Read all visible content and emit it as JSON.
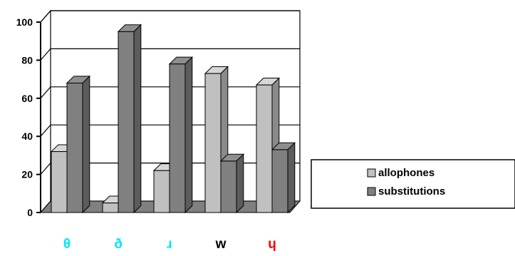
{
  "chart_data": {
    "type": "bar",
    "title": "",
    "xlabel": "",
    "ylabel": "",
    "ylim": [
      0,
      100
    ],
    "yticks": [
      0,
      20,
      40,
      60,
      80,
      100
    ],
    "grid": true,
    "legend": "right",
    "categories": [
      "θ",
      "ð",
      "ɹ",
      "w",
      "ɥ"
    ],
    "category_colors": [
      "#00e5ff",
      "#00e5ff",
      "#00e5ff",
      "#000000",
      "#ff0000"
    ],
    "series": [
      {
        "name": "allophones",
        "values": [
          32,
          5,
          22,
          73,
          67
        ],
        "color": "#c0c0c0"
      },
      {
        "name": "substitutions",
        "values": [
          68,
          95,
          78,
          27,
          33
        ],
        "color": "#808080"
      }
    ]
  }
}
